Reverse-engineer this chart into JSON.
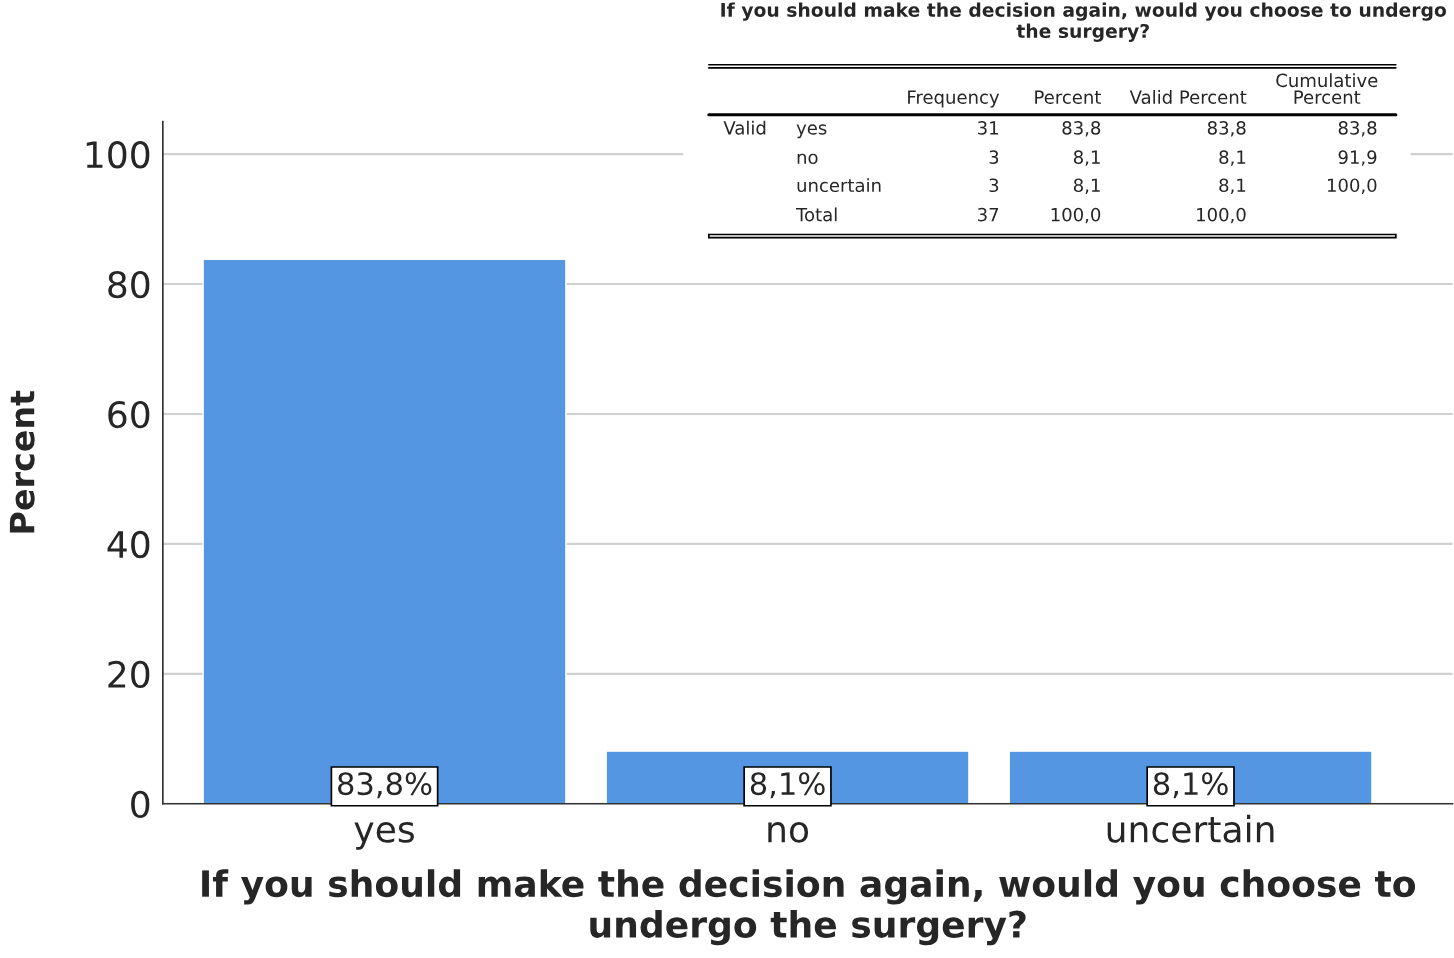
{
  "chart_data": [
    {
      "type": "bar",
      "xlabel": "If you should make the decision again, would you choose to undergo the surgery?",
      "ylabel": "Percent",
      "categories": [
        "yes",
        "no",
        "uncertain"
      ],
      "values": [
        83.8,
        8.1,
        8.1
      ],
      "value_labels": [
        "83,8%",
        "8,1%",
        "8,1%"
      ],
      "color": "#5596e3",
      "ylim": [
        0,
        105
      ],
      "yticks": [
        0,
        20,
        40,
        60,
        80,
        100
      ],
      "grid": "y"
    },
    {
      "type": "other",
      "title": "If you should make the decision again, would you choose to undergo the surgery?",
      "annotations": [
        "Valid"
      ],
      "categories": [
        "Frequency",
        "Percent",
        "Valid Percent",
        "Cumulative\nPercent"
      ],
      "y_categories": [
        "yes",
        "no",
        "uncertain",
        "Total"
      ],
      "cell_labels": [
        [
          "31",
          "83,8",
          "83,8",
          "83,8"
        ],
        [
          "3",
          "8,1",
          "8,1",
          "91,9"
        ],
        [
          "3",
          "8,1",
          "8,1",
          "100,0"
        ],
        [
          "37",
          "100,0",
          "100,0",
          null
        ]
      ]
    }
  ]
}
